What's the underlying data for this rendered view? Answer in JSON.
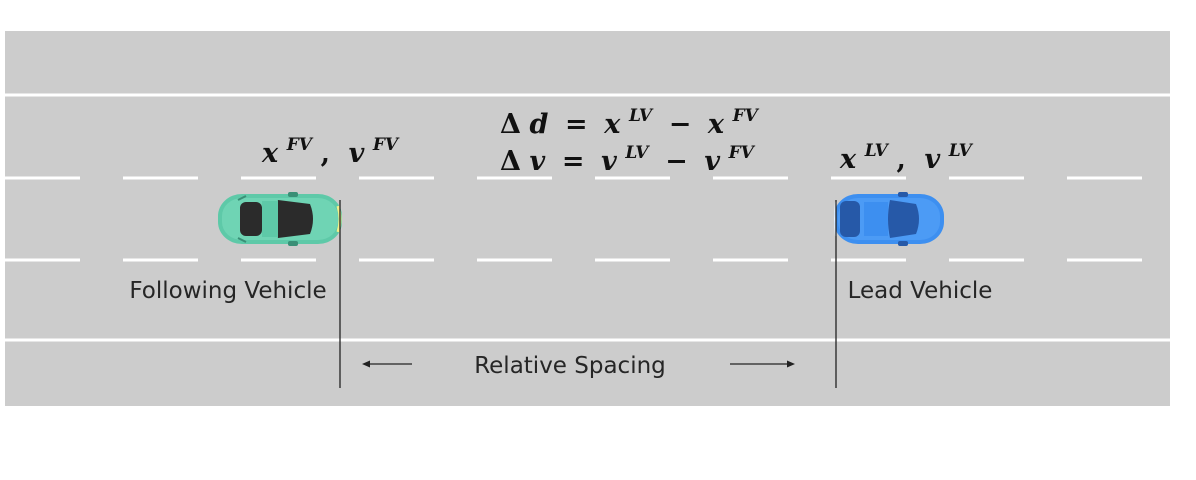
{
  "following_vehicle": {
    "label": "Following Vehicle",
    "pos_symbol": "x",
    "vel_symbol": "v",
    "superscript": "FV",
    "separator": ",",
    "color": "#5ec9a8"
  },
  "lead_vehicle": {
    "label": "Lead Vehicle",
    "pos_symbol": "x",
    "vel_symbol": "v",
    "superscript": "LV",
    "separator": ",",
    "color": "#3d8ff0"
  },
  "equations": {
    "delta": "Δ",
    "distance_symbol": "d",
    "velocity_symbol": "v",
    "equals": "=",
    "minus": "−"
  },
  "spacing": {
    "label": "Relative Spacing"
  },
  "colors": {
    "road": "#cccccc",
    "lane_marking": "#ffffff",
    "line": "#222222"
  }
}
